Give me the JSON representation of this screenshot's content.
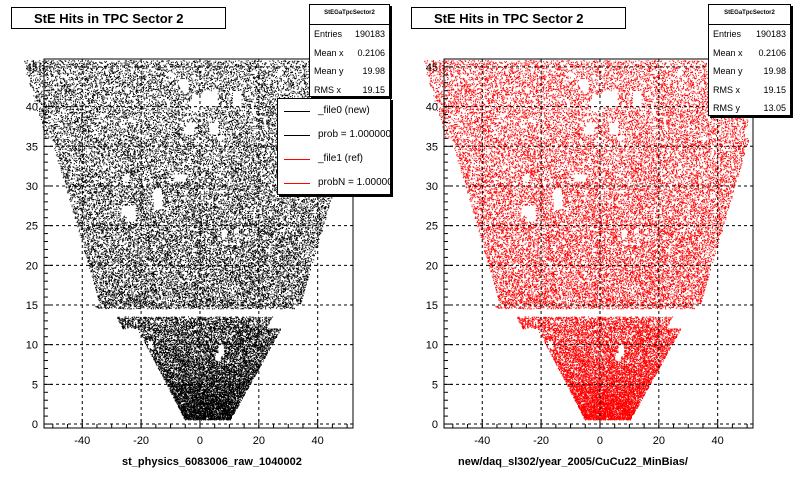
{
  "chart_data": [
    {
      "type": "scatter",
      "title": "StE Hits in TPC Sector 2",
      "xlabel": "st_physics_6083006_raw_1040002",
      "ylabel": "",
      "xlim": [
        -53,
        52
      ],
      "ylim": [
        -0.5,
        46
      ],
      "x_ticks": [
        -40,
        -20,
        0,
        20,
        40
      ],
      "y_ticks": [
        0,
        5,
        10,
        15,
        20,
        25,
        30,
        35,
        40,
        45
      ],
      "grid": true,
      "marker_color": "#000000",
      "stats": {
        "name": "StEGaTpcSector2",
        "rows": [
          {
            "label": "Entries",
            "value": "190183"
          },
          {
            "label": "Mean x",
            "value": "0.2106"
          },
          {
            "label": "Mean y",
            "value": "19.98"
          },
          {
            "label": "RMS x",
            "value": "19.15"
          }
        ]
      },
      "legend": [
        {
          "label": "_file0 (new)",
          "color": "#000000"
        },
        {
          "label": "prob = 1.000000",
          "color": "#000000"
        },
        {
          "label": "_file1 (ref)",
          "color": "#ff0000"
        },
        {
          "label": "probN = 1.000000",
          "color": "#ff0000"
        }
      ]
    },
    {
      "type": "scatter",
      "title": "StE Hits in TPC Sector 2",
      "xlabel": "new/daq_sl302/year_2005/CuCu22_MinBias/",
      "ylabel": "",
      "xlim": [
        -53,
        52
      ],
      "ylim": [
        -0.5,
        46
      ],
      "x_ticks": [
        -40,
        -20,
        0,
        20,
        40
      ],
      "y_ticks": [
        0,
        5,
        10,
        15,
        20,
        25,
        30,
        35,
        40,
        45
      ],
      "grid": true,
      "marker_color": "#ff0000",
      "stats": {
        "name": "StEGaTpcSector2",
        "rows": [
          {
            "label": "Entries",
            "value": "190183"
          },
          {
            "label": "Mean x",
            "value": "0.2106"
          },
          {
            "label": "Mean y",
            "value": "19.98"
          },
          {
            "label": "RMS x",
            "value": "19.15"
          },
          {
            "label": "RMS y",
            "value": "13.05"
          }
        ]
      }
    }
  ]
}
